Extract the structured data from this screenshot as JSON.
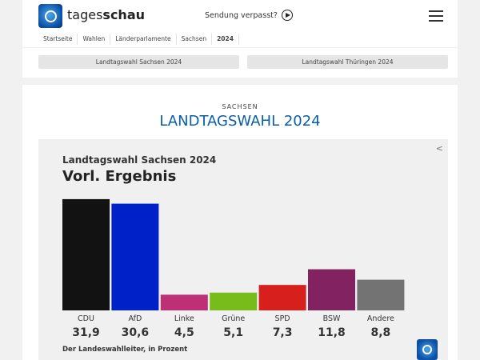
{
  "header": {
    "brand_light": "tages",
    "brand_bold": "schau",
    "missed": "Sendung verpasst?",
    "breadcrumbs": [
      "Startseite",
      "Wahlen",
      "Länderparlamente",
      "Sachsen",
      "2024"
    ],
    "tabs": [
      "Landtagswahl Sachsen 2024",
      "Landtagswahl Thüringen 2024"
    ]
  },
  "main": {
    "kicker": "SACHSEN",
    "title": "LANDTAGSWAHL 2024"
  },
  "chart_data": {
    "type": "bar",
    "title": "Landtagswahl Sachsen 2024",
    "subtitle": "Vorl. Ergebnis",
    "source": "Der Landeswahlleiter, in Prozent",
    "categories": [
      "CDU",
      "AfD",
      "Linke",
      "Grüne",
      "SPD",
      "BSW",
      "Andere"
    ],
    "values": [
      31.9,
      30.6,
      4.5,
      5.1,
      7.3,
      11.8,
      8.8
    ],
    "value_labels": [
      "31,9",
      "30,6",
      "4,5",
      "5,1",
      "7,3",
      "11,8",
      "8,8"
    ],
    "colors": [
      "#121212",
      "#0021c8",
      "#bd3075",
      "#78bc1b",
      "#d71f1d",
      "#832260",
      "#737373"
    ],
    "unit": "Prozent"
  }
}
